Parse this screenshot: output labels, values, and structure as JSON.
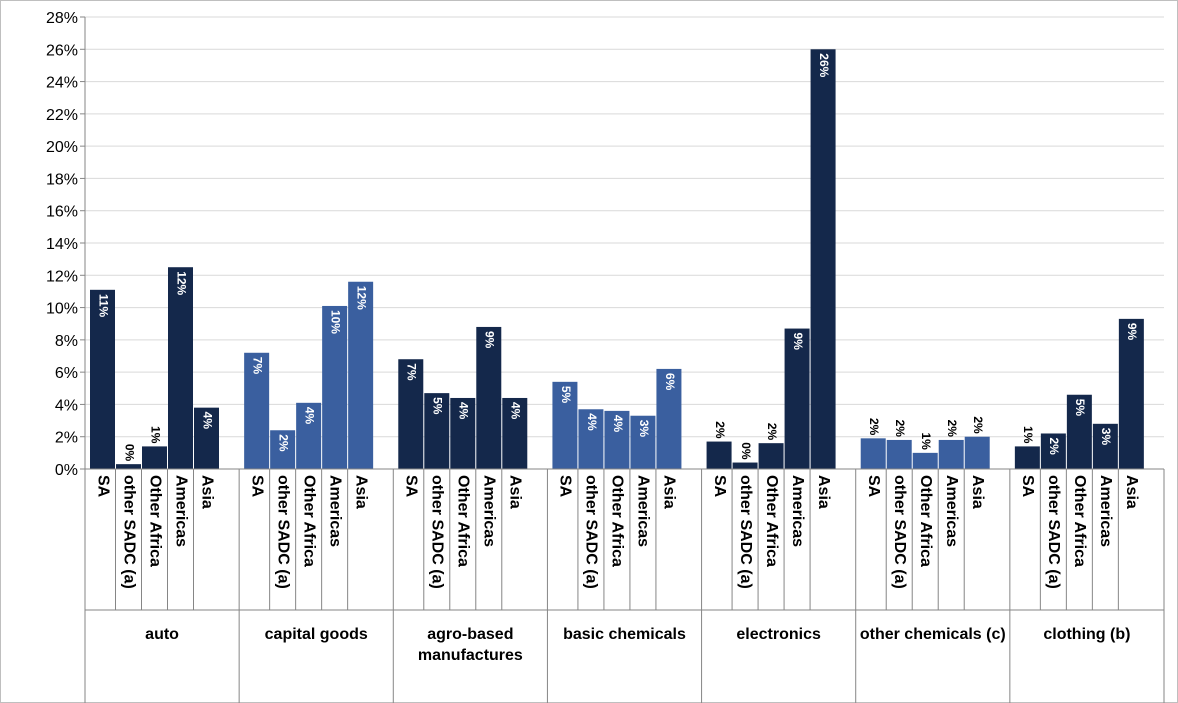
{
  "chart_data": {
    "type": "bar",
    "categories": [
      "SA",
      "other SADC (a)",
      "Other Africa",
      "Americas",
      "Asia"
    ],
    "series": [
      {
        "name": "auto",
        "color": "#14284b",
        "values": [
          11.1,
          0.3,
          1.4,
          12.5,
          3.8
        ],
        "value_labels": [
          "11%",
          "0%",
          "1%",
          "12%",
          "4%"
        ]
      },
      {
        "name": "capital goods",
        "color": "#3a5f9f",
        "values": [
          7.2,
          2.4,
          4.1,
          10.1,
          11.6
        ],
        "value_labels": [
          "7%",
          "2%",
          "4%",
          "10%",
          "12%"
        ]
      },
      {
        "name": "agro-based manufactures",
        "color": "#14284b",
        "values": [
          6.8,
          4.7,
          4.4,
          8.8,
          4.4
        ],
        "value_labels": [
          "7%",
          "5%",
          "4%",
          "9%",
          "4%"
        ]
      },
      {
        "name": "basic chemicals",
        "color": "#3a5f9f",
        "values": [
          5.4,
          3.7,
          3.6,
          3.3,
          6.2
        ],
        "value_labels": [
          "5%",
          "4%",
          "4%",
          "3%",
          "6%"
        ]
      },
      {
        "name": "electronics",
        "color": "#14284b",
        "values": [
          1.7,
          0.4,
          1.6,
          8.7,
          26.0
        ],
        "value_labels": [
          "2%",
          "0%",
          "2%",
          "9%",
          "26%"
        ]
      },
      {
        "name": "other chemicals (c)",
        "color": "#3a5f9f",
        "values": [
          1.9,
          1.8,
          1.0,
          1.8,
          2.0
        ],
        "value_labels": [
          "2%",
          "2%",
          "1%",
          "2%",
          "2%"
        ]
      },
      {
        "name": "clothing (b)",
        "color": "#14284b",
        "values": [
          1.4,
          2.2,
          4.6,
          2.8,
          9.3
        ],
        "value_labels": [
          "1%",
          "2%",
          "5%",
          "3%",
          "9%"
        ]
      }
    ],
    "ylim": [
      0,
      28
    ],
    "yticks": [
      {
        "value": 0,
        "label": "0%"
      },
      {
        "value": 2,
        "label": "2%"
      },
      {
        "value": 4,
        "label": "4%"
      },
      {
        "value": 6,
        "label": "6%"
      },
      {
        "value": 8,
        "label": "8%"
      },
      {
        "value": 10,
        "label": "10%"
      },
      {
        "value": 12,
        "label": "12%"
      },
      {
        "value": 14,
        "label": "14%"
      },
      {
        "value": 16,
        "label": "16%"
      },
      {
        "value": 18,
        "label": "18%"
      },
      {
        "value": 20,
        "label": "20%"
      },
      {
        "value": 22,
        "label": "22%"
      },
      {
        "value": 24,
        "label": "24%"
      },
      {
        "value": 26,
        "label": "26%"
      },
      {
        "value": 28,
        "label": "28%"
      }
    ],
    "grid": true
  }
}
